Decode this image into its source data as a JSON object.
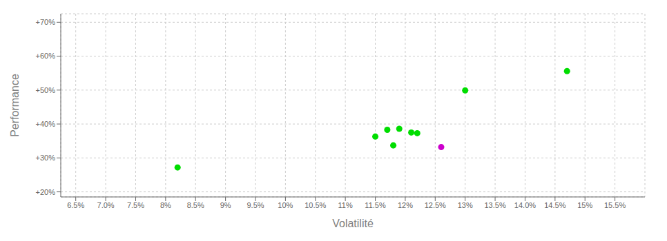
{
  "chart_data": {
    "type": "scatter",
    "xlabel": "Volatilité",
    "ylabel": "Performance",
    "xlim": [
      0.0625,
      0.16
    ],
    "ylim": [
      0.185,
      0.725
    ],
    "xticks": [
      {
        "value": 0.065,
        "label": "6.5%"
      },
      {
        "value": 0.07,
        "label": "7.0%"
      },
      {
        "value": 0.075,
        "label": "7.5%"
      },
      {
        "value": 0.08,
        "label": "8%"
      },
      {
        "value": 0.085,
        "label": "8.5%"
      },
      {
        "value": 0.09,
        "label": "9%"
      },
      {
        "value": 0.095,
        "label": "9.5%"
      },
      {
        "value": 0.1,
        "label": "10%"
      },
      {
        "value": 0.105,
        "label": "10.5%"
      },
      {
        "value": 0.11,
        "label": "11%"
      },
      {
        "value": 0.115,
        "label": "11.5%"
      },
      {
        "value": 0.12,
        "label": "12%"
      },
      {
        "value": 0.125,
        "label": "12.5%"
      },
      {
        "value": 0.13,
        "label": "13%"
      },
      {
        "value": 0.135,
        "label": "13.5%"
      },
      {
        "value": 0.14,
        "label": "14.0%"
      },
      {
        "value": 0.145,
        "label": "14.5%"
      },
      {
        "value": 0.15,
        "label": "15%"
      },
      {
        "value": 0.155,
        "label": "15.5%"
      }
    ],
    "yticks": [
      {
        "value": 0.2,
        "label": "+20%"
      },
      {
        "value": 0.3,
        "label": "+30%"
      },
      {
        "value": 0.4,
        "label": "+40%"
      },
      {
        "value": 0.5,
        "label": "+50%"
      },
      {
        "value": 0.6,
        "label": "+60%"
      },
      {
        "value": 0.7,
        "label": "+70%"
      }
    ],
    "grid": true,
    "series": [
      {
        "color": "#00dd00",
        "x": [
          0.082,
          0.115,
          0.117,
          0.119,
          0.118,
          0.121,
          0.122,
          0.13,
          0.147
        ],
        "values": [
          0.272,
          0.363,
          0.383,
          0.386,
          0.337,
          0.375,
          0.373,
          0.499,
          0.556
        ]
      },
      {
        "color": "#cc00cc",
        "x": [
          0.126
        ],
        "values": [
          0.332
        ]
      }
    ]
  }
}
